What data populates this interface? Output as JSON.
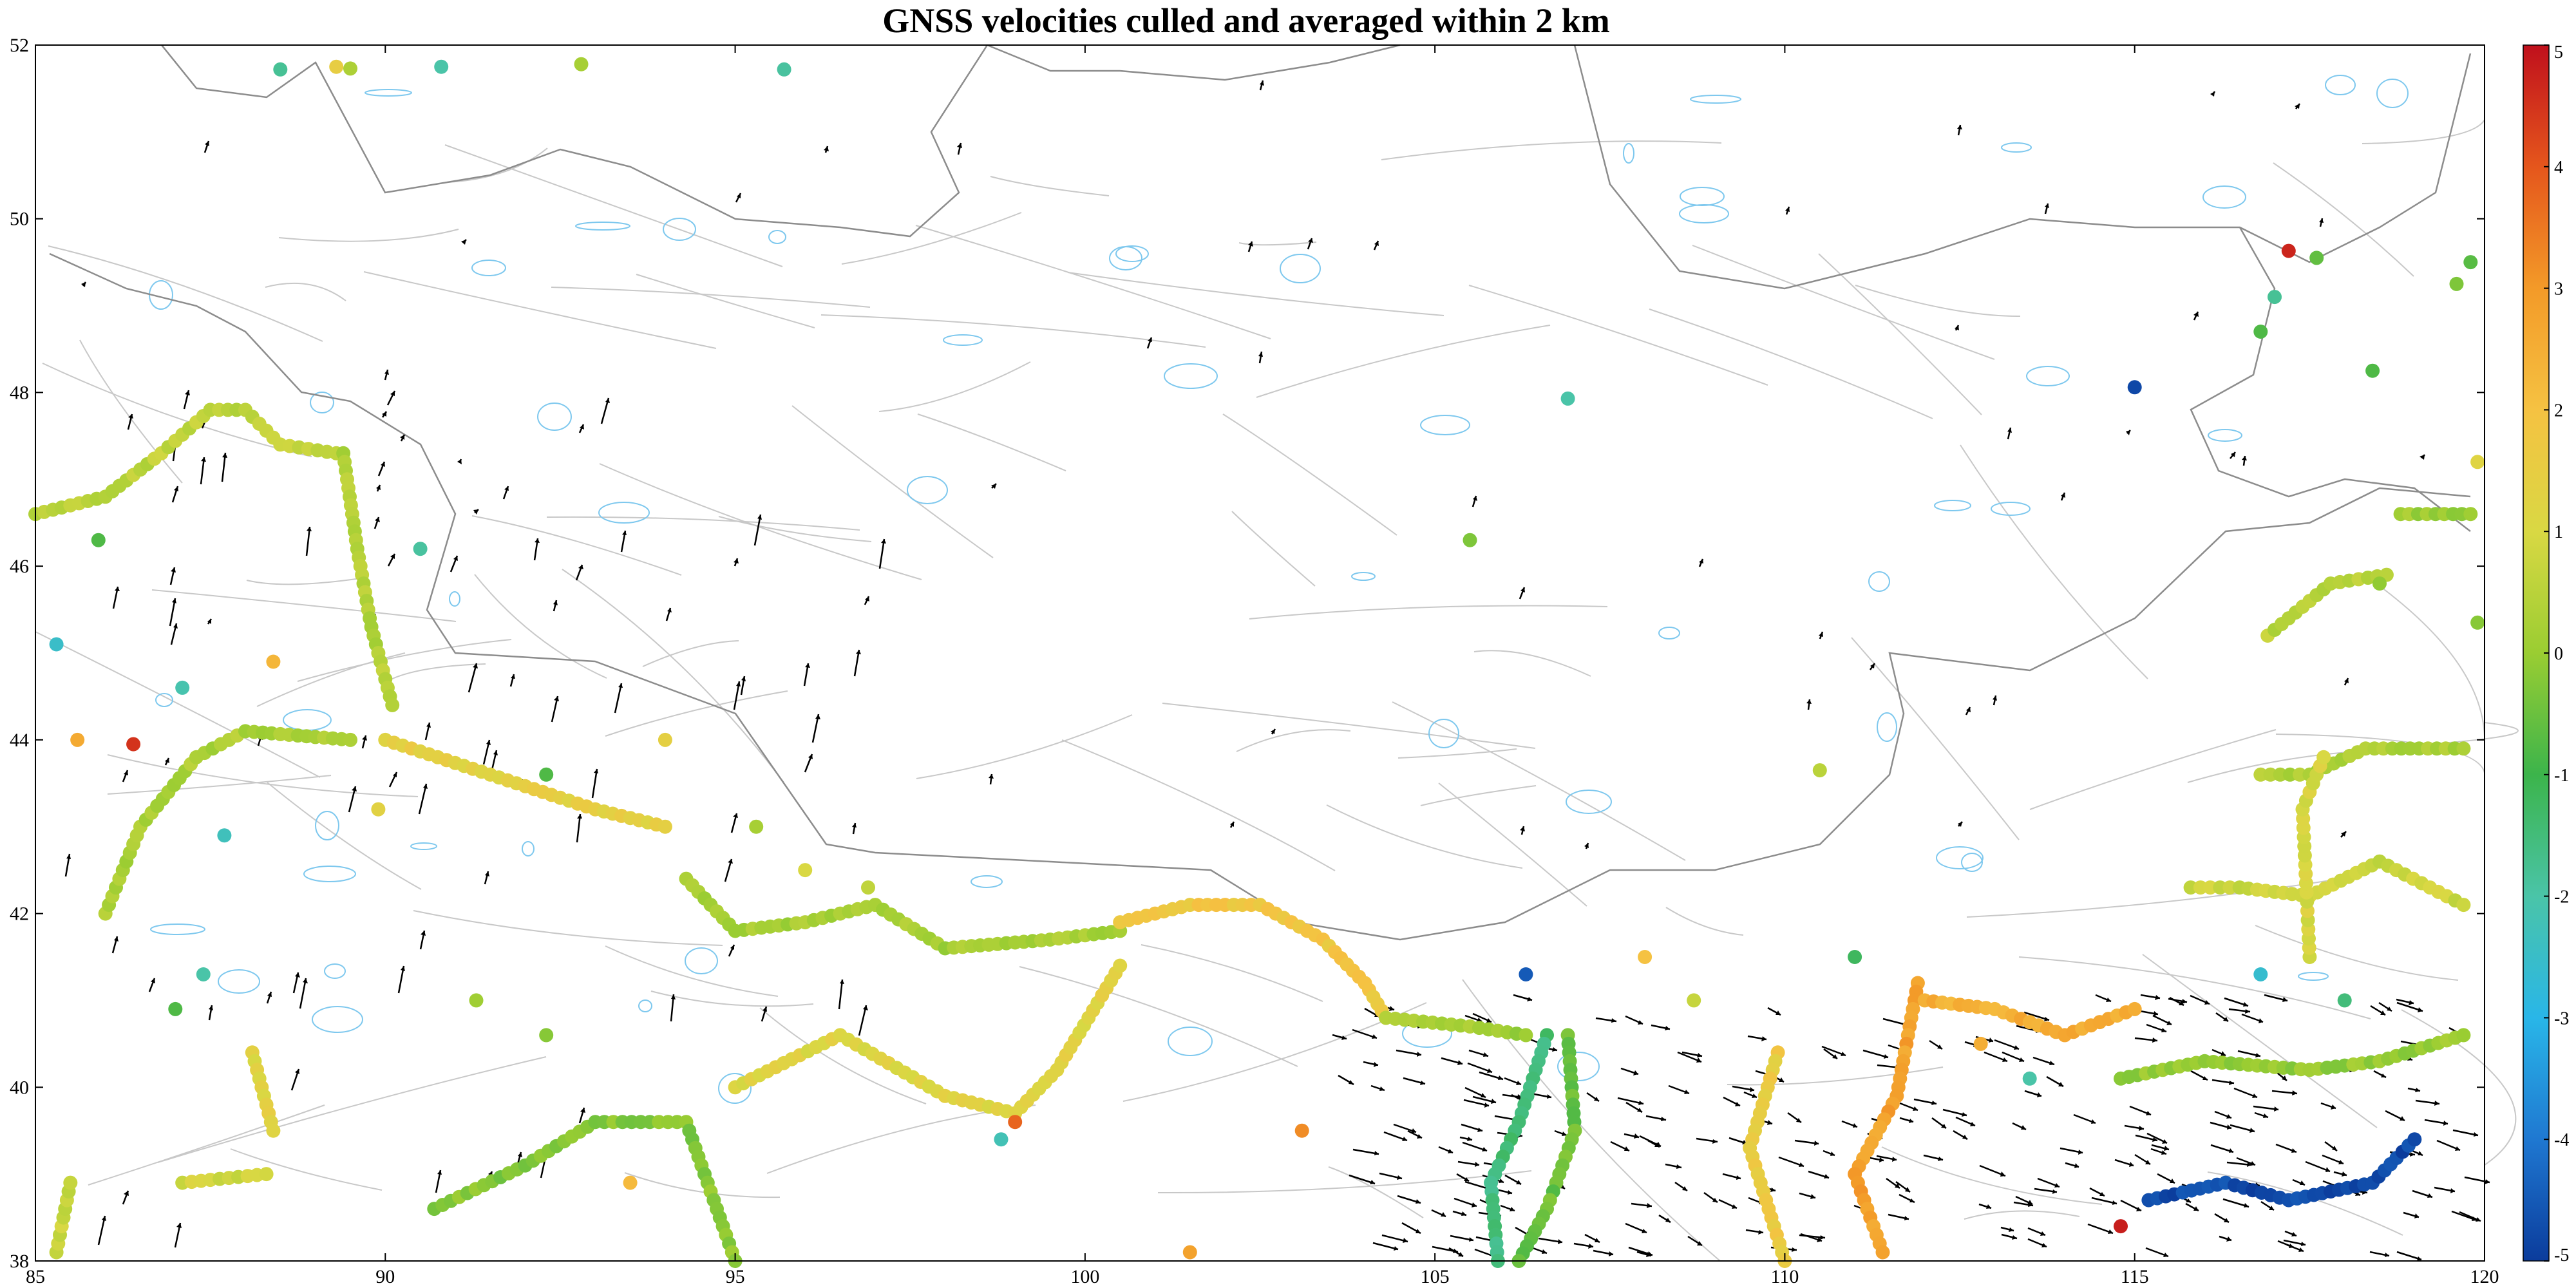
{
  "title": "GNSS velocities culled and averaged within 2 km",
  "axes": {
    "lon_range": [
      85,
      120
    ],
    "lat_range": [
      38,
      52
    ],
    "x_ticks": [
      "85",
      "90",
      "95",
      "100",
      "105",
      "110",
      "115",
      "120"
    ],
    "y_ticks": [
      "38",
      "40",
      "42",
      "44",
      "46",
      "48",
      "50",
      "52"
    ]
  },
  "colorbar": {
    "range": [
      -5,
      5
    ],
    "tick_labels": [
      "5",
      "4",
      "3",
      "2",
      "1",
      "0",
      "-1",
      "-2",
      "-3",
      "-4",
      "-5"
    ],
    "colormap": [
      "#0b3c9c",
      "#1f78d1",
      "#29b6e8",
      "#4ac4a8",
      "#3cb44b",
      "#9acd32",
      "#d9d843",
      "#f5c242",
      "#f39a28",
      "#e5561c",
      "#c0101c"
    ]
  },
  "colors": {
    "borders": "#8c8c8c",
    "faults": "#c8c8c8",
    "water": "#7ec8ee",
    "arrows": "#000000"
  },
  "chart_data": {
    "type": "scatter",
    "x_range": [
      85,
      120
    ],
    "y_range": [
      38,
      52
    ],
    "value_range": [
      -5,
      5
    ],
    "transects": [
      {
        "name": "",
        "value": 0.6,
        "points": [
          [
            85,
            46.6
          ],
          [
            86,
            46.8
          ],
          [
            86.8,
            47.3
          ],
          [
            87.5,
            47.8
          ],
          [
            88,
            47.8
          ],
          [
            88.5,
            47.4
          ],
          [
            89.3,
            47.3
          ]
        ]
      },
      {
        "name": "",
        "value": 0.4,
        "points": [
          [
            89.4,
            47.3
          ],
          [
            89.6,
            46.2
          ],
          [
            89.8,
            45.3
          ],
          [
            90.1,
            44.4
          ]
        ]
      },
      {
        "name": "",
        "value": 0.3,
        "points": [
          [
            86,
            42
          ],
          [
            86.5,
            43
          ],
          [
            87.3,
            43.8
          ],
          [
            88,
            44.1
          ],
          [
            89.5,
            44.0
          ]
        ]
      },
      {
        "name": "",
        "value": 1.4,
        "points": [
          [
            90,
            44.0
          ],
          [
            91.5,
            43.6
          ],
          [
            93,
            43.2
          ],
          [
            94,
            43.0
          ]
        ]
      },
      {
        "name": "",
        "value": 0.2,
        "points": [
          [
            94.3,
            42.4
          ],
          [
            95,
            41.8
          ],
          [
            96,
            41.9
          ],
          [
            97,
            42.1
          ],
          [
            98,
            41.6
          ],
          [
            99.5,
            41.7
          ],
          [
            100.5,
            41.8
          ]
        ]
      },
      {
        "name": "",
        "value": 1.8,
        "points": [
          [
            100.5,
            41.9
          ],
          [
            101.5,
            42.1
          ],
          [
            102.5,
            42.1
          ],
          [
            103.4,
            41.7
          ],
          [
            104,
            41.2
          ],
          [
            104.3,
            40.8
          ]
        ]
      },
      {
        "name": "",
        "value": 0.1,
        "points": [
          [
            104.3,
            40.8
          ],
          [
            105.5,
            40.7
          ],
          [
            106.3,
            40.6
          ]
        ]
      },
      {
        "name": "",
        "value": 1.2,
        "points": [
          [
            95,
            40.0
          ],
          [
            96.5,
            40.6
          ],
          [
            98,
            39.9
          ],
          [
            99,
            39.7
          ],
          [
            99.6,
            40.2
          ],
          [
            100.5,
            41.4
          ]
        ]
      },
      {
        "name": "",
        "value": -0.2,
        "points": [
          [
            90.7,
            38.6
          ],
          [
            92,
            39.1
          ],
          [
            93,
            39.6
          ],
          [
            94.3,
            39.6
          ],
          [
            95,
            38.0
          ]
        ]
      },
      {
        "name": "",
        "value": -1.5,
        "points": [
          [
            106.6,
            40.6
          ],
          [
            106.2,
            39.6
          ],
          [
            105.8,
            38.9
          ],
          [
            105.9,
            38.0
          ]
        ]
      },
      {
        "name": "",
        "value": -0.5,
        "points": [
          [
            106.9,
            40.6
          ],
          [
            107.0,
            39.5
          ],
          [
            106.6,
            38.6
          ],
          [
            106.2,
            38.0
          ]
        ]
      },
      {
        "name": "",
        "value": 1.6,
        "points": [
          [
            109.9,
            40.4
          ],
          [
            109.5,
            39.3
          ],
          [
            110.0,
            38.0
          ]
        ]
      },
      {
        "name": "",
        "value": 2.8,
        "points": [
          [
            111.9,
            41.2
          ],
          [
            111.6,
            39.9
          ],
          [
            111.0,
            39.0
          ],
          [
            111.4,
            38.1
          ]
        ]
      },
      {
        "name": "",
        "value": 2.5,
        "points": [
          [
            112.0,
            41.0
          ],
          [
            113.0,
            40.9
          ],
          [
            114.0,
            40.6
          ],
          [
            115.0,
            40.9
          ]
        ]
      },
      {
        "name": "",
        "value": -4.8,
        "points": [
          [
            115.2,
            38.7
          ],
          [
            116.3,
            38.9
          ],
          [
            117.2,
            38.7
          ],
          [
            118.4,
            38.9
          ],
          [
            119.0,
            39.4
          ]
        ]
      },
      {
        "name": "",
        "value": 0.0,
        "points": [
          [
            114.8,
            40.1
          ],
          [
            116.0,
            40.3
          ],
          [
            117.5,
            40.2
          ],
          [
            118.5,
            40.3
          ],
          [
            119.7,
            40.6
          ]
        ]
      },
      {
        "name": "",
        "value": 0.8,
        "points": [
          [
            115.8,
            42.3
          ],
          [
            116.5,
            42.3
          ],
          [
            117.5,
            42.2
          ],
          [
            118.5,
            42.6
          ],
          [
            119.7,
            42.1
          ]
        ]
      },
      {
        "name": "",
        "value": 0.3,
        "points": [
          [
            116.8,
            43.6
          ],
          [
            117.5,
            43.6
          ],
          [
            118.3,
            43.9
          ],
          [
            119.7,
            43.9
          ]
        ]
      },
      {
        "name": "",
        "value": 1.0,
        "points": [
          [
            117.5,
            41.5
          ],
          [
            117.4,
            43.2
          ],
          [
            117.7,
            43.8
          ]
        ]
      },
      {
        "name": "",
        "value": 0.5,
        "points": [
          [
            116.9,
            45.2
          ],
          [
            117.8,
            45.8
          ],
          [
            118.6,
            45.9
          ]
        ]
      },
      {
        "name": "",
        "value": 0.1,
        "points": [
          [
            118.8,
            46.6
          ],
          [
            119.8,
            46.6
          ]
        ]
      },
      {
        "name": "",
        "value": 0.7,
        "points": [
          [
            85.3,
            38.1
          ],
          [
            85.5,
            38.9
          ]
        ]
      },
      {
        "name": "",
        "value": 0.9,
        "points": [
          [
            87.1,
            38.9
          ],
          [
            88.3,
            39.0
          ]
        ]
      },
      {
        "name": "",
        "value": 1.2,
        "points": [
          [
            88.1,
            40.4
          ],
          [
            88.4,
            39.5
          ]
        ]
      }
    ],
    "stations": [
      {
        "lon": 88.5,
        "lat": 51.72,
        "value": -1.8
      },
      {
        "lon": 89.3,
        "lat": 51.75,
        "value": 1.5
      },
      {
        "lon": 89.5,
        "lat": 51.73,
        "value": 0.3
      },
      {
        "lon": 90.8,
        "lat": 51.75,
        "value": -2.0
      },
      {
        "lon": 92.8,
        "lat": 51.78,
        "value": 0.2
      },
      {
        "lon": 95.7,
        "lat": 51.72,
        "value": -1.9
      },
      {
        "lon": 117.2,
        "lat": 49.63,
        "value": 4.7
      },
      {
        "lon": 117.6,
        "lat": 49.55,
        "value": -0.6
      },
      {
        "lon": 115.0,
        "lat": 48.06,
        "value": -4.8
      },
      {
        "lon": 106.9,
        "lat": 47.93,
        "value": -2.0
      },
      {
        "lon": 105.5,
        "lat": 46.3,
        "value": -0.3
      },
      {
        "lon": 110.5,
        "lat": 43.65,
        "value": 0.5
      },
      {
        "lon": 86.4,
        "lat": 43.95,
        "value": 4.5
      },
      {
        "lon": 85.6,
        "lat": 44.0,
        "value": 2.6
      },
      {
        "lon": 85.3,
        "lat": 45.1,
        "value": -2.5
      },
      {
        "lon": 87.1,
        "lat": 44.6,
        "value": -2.1
      },
      {
        "lon": 88.4,
        "lat": 44.9,
        "value": 2.3
      },
      {
        "lon": 87.7,
        "lat": 42.9,
        "value": -2.3
      },
      {
        "lon": 87.4,
        "lat": 41.3,
        "value": -2.0
      },
      {
        "lon": 87.0,
        "lat": 40.9,
        "value": -0.8
      },
      {
        "lon": 85.9,
        "lat": 46.3,
        "value": -0.8
      },
      {
        "lon": 90.5,
        "lat": 46.2,
        "value": -1.9
      },
      {
        "lon": 92.3,
        "lat": 43.6,
        "value": -0.8
      },
      {
        "lon": 94.0,
        "lat": 44.0,
        "value": 1.4
      },
      {
        "lon": 96.9,
        "lat": 42.3,
        "value": 0.6
      },
      {
        "lon": 98.8,
        "lat": 39.4,
        "value": -2.2
      },
      {
        "lon": 99.0,
        "lat": 39.6,
        "value": 3.8
      },
      {
        "lon": 101.5,
        "lat": 38.1,
        "value": 2.8
      },
      {
        "lon": 103.1,
        "lat": 39.5,
        "value": 3.2
      },
      {
        "lon": 106.3,
        "lat": 41.3,
        "value": -4.5
      },
      {
        "lon": 108.0,
        "lat": 41.5,
        "value": 2.0
      },
      {
        "lon": 108.7,
        "lat": 41.0,
        "value": 0.7
      },
      {
        "lon": 111.0,
        "lat": 41.5,
        "value": -1.2
      },
      {
        "lon": 112.8,
        "lat": 40.5,
        "value": 2.5
      },
      {
        "lon": 113.5,
        "lat": 40.1,
        "value": -2.0
      },
      {
        "lon": 114.8,
        "lat": 38.4,
        "value": 4.8
      },
      {
        "lon": 116.8,
        "lat": 41.3,
        "value": -2.6
      },
      {
        "lon": 118.0,
        "lat": 41.0,
        "value": -1.5
      },
      {
        "lon": 119.8,
        "lat": 49.5,
        "value": -0.7
      },
      {
        "lon": 119.6,
        "lat": 49.25,
        "value": -0.3
      },
      {
        "lon": 119.9,
        "lat": 47.2,
        "value": 1.2
      },
      {
        "lon": 119.9,
        "lat": 45.35,
        "value": -0.2
      },
      {
        "lon": 118.5,
        "lat": 45.8,
        "value": -0.1
      },
      {
        "lon": 118.4,
        "lat": 48.25,
        "value": -0.8
      },
      {
        "lon": 116.8,
        "lat": 48.7,
        "value": -0.8
      },
      {
        "lon": 117.0,
        "lat": 49.1,
        "value": -1.8
      },
      {
        "lon": 93.5,
        "lat": 38.9,
        "value": 2.2
      },
      {
        "lon": 92.3,
        "lat": 40.6,
        "value": -0.2
      },
      {
        "lon": 91.3,
        "lat": 41.0,
        "value": 0.1
      },
      {
        "lon": 89.9,
        "lat": 43.2,
        "value": 1.3
      },
      {
        "lon": 95.3,
        "lat": 43.0,
        "value": 0.2
      },
      {
        "lon": 96.0,
        "lat": 42.5,
        "value": 1.0
      }
    ],
    "arrow_region": [
      [
        103.5,
        41.2
      ],
      [
        120,
        41.2
      ],
      [
        120,
        38
      ],
      [
        97,
        38
      ]
    ]
  }
}
